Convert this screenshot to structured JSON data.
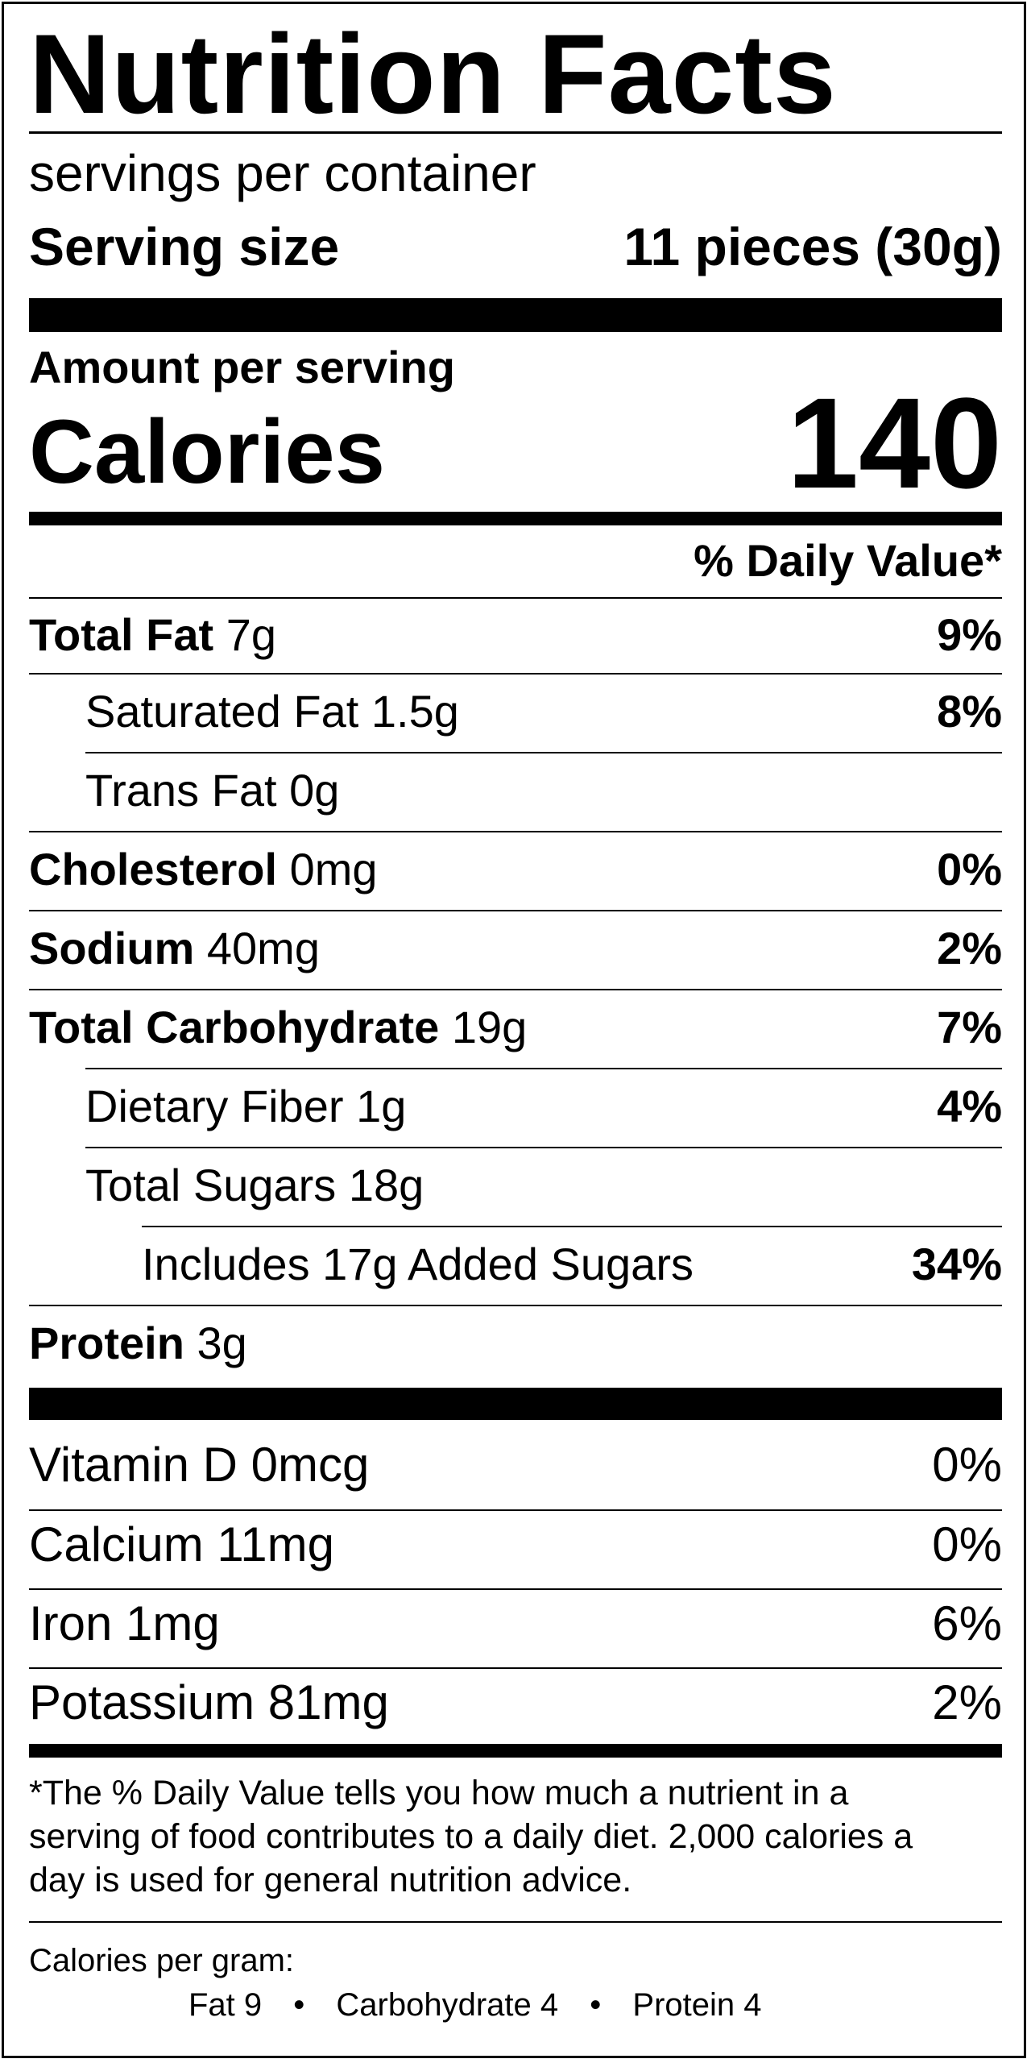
{
  "header": {
    "title": "Nutrition Facts",
    "servings_per_container": "servings per container",
    "serving_size_label": "Serving size",
    "serving_size_value": "11 pieces (30g)"
  },
  "calories": {
    "amount_per_serving": "Amount per serving",
    "label": "Calories",
    "value": "140"
  },
  "daily_value_header": "% Daily Value*",
  "nutrients": [
    {
      "name": "Total Fat",
      "amount": "7g",
      "dv": "9%"
    },
    {
      "name": "Saturated Fat",
      "amount": "1.5g",
      "dv": "8%"
    },
    {
      "name": "Trans Fat",
      "amount": "0g",
      "dv": ""
    },
    {
      "name": "Cholesterol",
      "amount": "0mg",
      "dv": "0%"
    },
    {
      "name": "Sodium",
      "amount": "40mg",
      "dv": "2%"
    },
    {
      "name": "Total Carbohydrate",
      "amount": "19g",
      "dv": "7%"
    },
    {
      "name": "Dietary Fiber",
      "amount": "1g",
      "dv": "4%"
    },
    {
      "name": "Total Sugars",
      "amount": "18g",
      "dv": ""
    },
    {
      "name": "Includes 17g Added Sugars",
      "amount": "",
      "dv": "34%"
    },
    {
      "name": "Protein",
      "amount": "3g",
      "dv": ""
    }
  ],
  "vitamins": [
    {
      "text": "Vitamin D 0mcg",
      "dv": "0%"
    },
    {
      "text": "Calcium 11mg",
      "dv": "0%"
    },
    {
      "text": "Iron 1mg",
      "dv": "6%"
    },
    {
      "text": "Potassium 81mg",
      "dv": "2%"
    }
  ],
  "footnote": {
    "line1": "*The % Daily Value tells you how much a nutrient in a",
    "line2": "serving of food contributes to a daily diet. 2,000 calories a",
    "line3": "day is used for general nutrition advice."
  },
  "calories_per_gram": {
    "label": "Calories per gram:",
    "fat": "Fat 9",
    "carbohydrate": "Carbohydrate 4",
    "protein": "Protein 4",
    "separator": "•"
  }
}
